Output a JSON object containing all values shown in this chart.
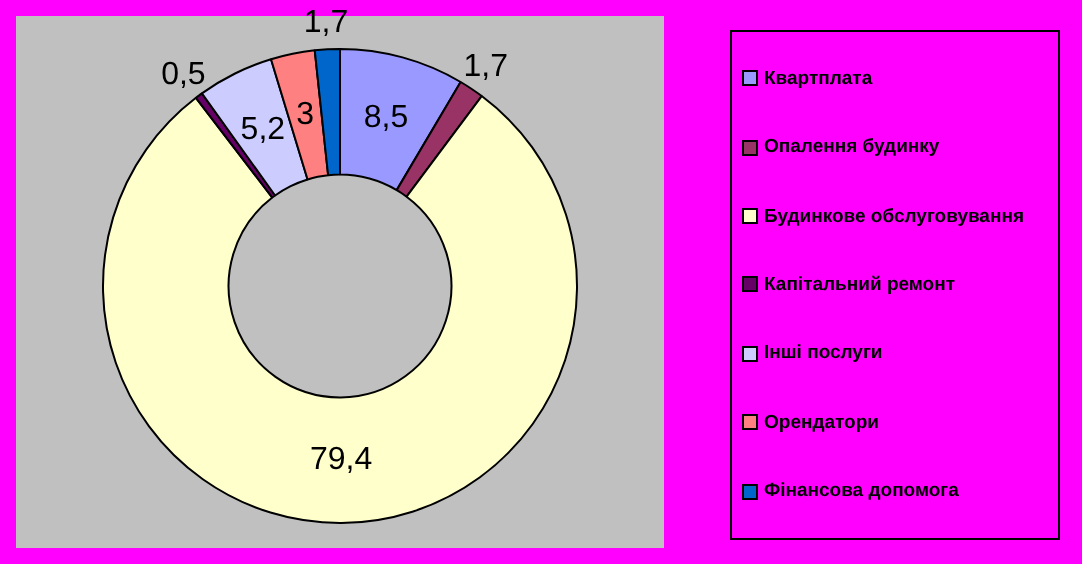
{
  "chart_data": {
    "type": "donut",
    "categories": [
      "Квартплата",
      "Опалення будинку",
      "Будинкове обслуговування",
      "Капітальний ремонт",
      "Інші послуги",
      "Орендатори",
      "Фінансова допомога"
    ],
    "values": [
      8.5,
      1.7,
      79.4,
      0.5,
      5.2,
      3,
      1.7
    ],
    "value_labels": [
      "8,5",
      "1,7",
      "79,4",
      "0,5",
      "5,2",
      "3",
      "1,7"
    ],
    "colors": [
      "#9999ff",
      "#993366",
      "#ffffcc",
      "#660066",
      "#ccccff",
      "#ff8080",
      "#0066cc"
    ],
    "legend": "right"
  }
}
